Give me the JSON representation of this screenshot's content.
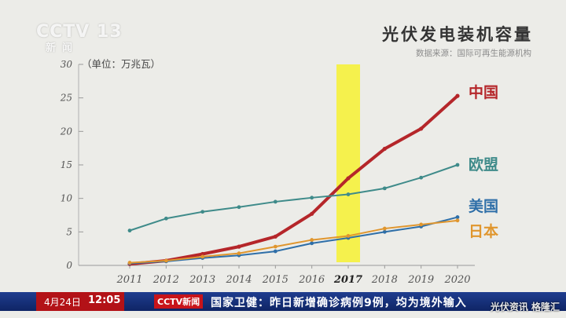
{
  "channel": {
    "logo": "CCTV 13",
    "sub": "新闻"
  },
  "chart_data": {
    "type": "line",
    "title": "光伏发电装机容量",
    "source": "数据来源：国际可再生能源机构",
    "ylabel": "（单位：万兆瓦）",
    "ylim": [
      0,
      30
    ],
    "yticks": [
      0,
      5,
      10,
      15,
      20,
      25,
      30
    ],
    "x": [
      "2011",
      "2012",
      "2013",
      "2014",
      "2015",
      "2016",
      "2017",
      "2018",
      "2019",
      "2020"
    ],
    "highlight_x": "2017",
    "grid": false,
    "series": [
      {
        "name": "中国",
        "color": "#b5262a",
        "width": 4,
        "values": [
          0.2,
          0.7,
          1.7,
          2.8,
          4.3,
          7.7,
          13.0,
          17.4,
          20.4,
          25.3
        ]
      },
      {
        "name": "欧盟",
        "color": "#3f8b8a",
        "width": 2,
        "values": [
          5.2,
          7.0,
          8.0,
          8.7,
          9.5,
          10.1,
          10.6,
          11.5,
          13.1,
          15.0
        ]
      },
      {
        "name": "美国",
        "color": "#2f6fa8",
        "width": 2,
        "values": [
          0.3,
          0.6,
          1.1,
          1.5,
          2.1,
          3.3,
          4.1,
          5.0,
          5.8,
          7.2
        ]
      },
      {
        "name": "日本",
        "color": "#e0962e",
        "width": 2,
        "values": [
          0.4,
          0.7,
          1.3,
          1.8,
          2.8,
          3.8,
          4.4,
          5.5,
          6.1,
          6.7
        ]
      }
    ]
  },
  "ticker": {
    "date": "4月24日",
    "time": "12:05",
    "logo": "CCTV新闻",
    "headline": "国家卫健：昨日新增确诊病例9例，均为境外输入"
  },
  "watermark": "光伏资讯 格隆汇"
}
